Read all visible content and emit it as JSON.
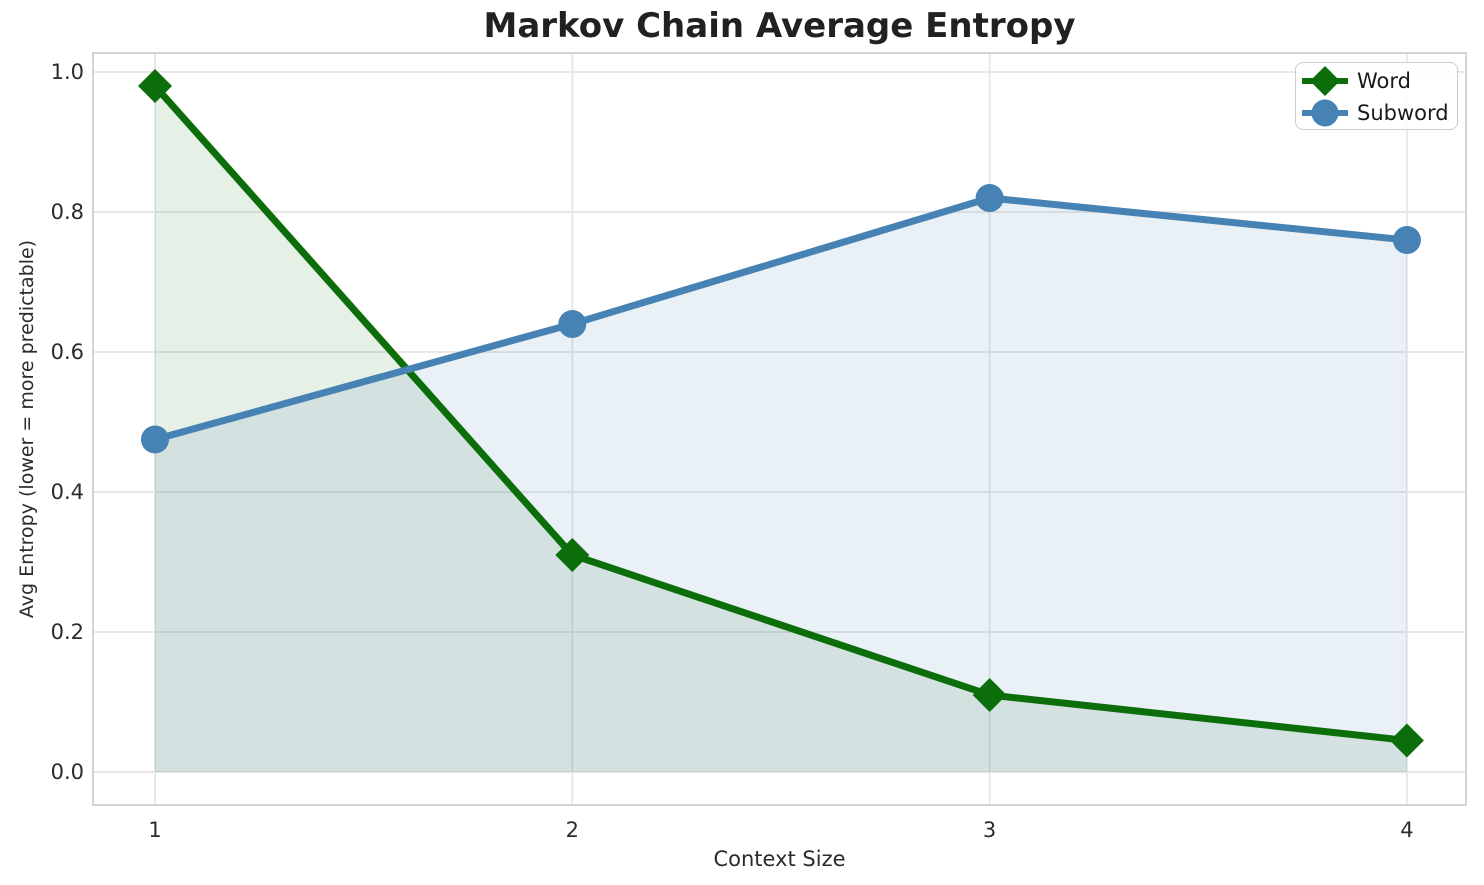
{
  "chart_data": {
    "type": "line",
    "title": "Markov Chain Average Entropy",
    "xlabel": "Context Size",
    "ylabel": "Avg Entropy (lower = more predictable)",
    "x": [
      1,
      2,
      3,
      4
    ],
    "xtick_labels": [
      "1",
      "2",
      "3",
      "4"
    ],
    "yticks": [
      0.0,
      0.2,
      0.4,
      0.6,
      0.8,
      1.0
    ],
    "ytick_labels": [
      "0.0",
      "0.2",
      "0.4",
      "0.6",
      "0.8",
      "1.0"
    ],
    "xlim": [
      0.849,
      4.144
    ],
    "ylim": [
      -0.0486,
      1.0286
    ],
    "grid": true,
    "legend_position": "upper right",
    "series": [
      {
        "name": "Word",
        "marker": "diamond",
        "color": "#0b6e0b",
        "fill_alpha": 0.1,
        "values": [
          0.98,
          0.31,
          0.11,
          0.045
        ]
      },
      {
        "name": "Subword",
        "marker": "circle",
        "color": "#4682b4",
        "fill_alpha": 0.12,
        "values": [
          0.475,
          0.64,
          0.82,
          0.76
        ]
      }
    ],
    "colors": {
      "grid": "#e8e8e8",
      "spine": "#d3d3d3",
      "title_text": "#212121",
      "tick_text": "#2b2b2b",
      "legend_text": "#1a1a1a",
      "legend_border": "#cccccc",
      "background": "#ffffff"
    }
  }
}
